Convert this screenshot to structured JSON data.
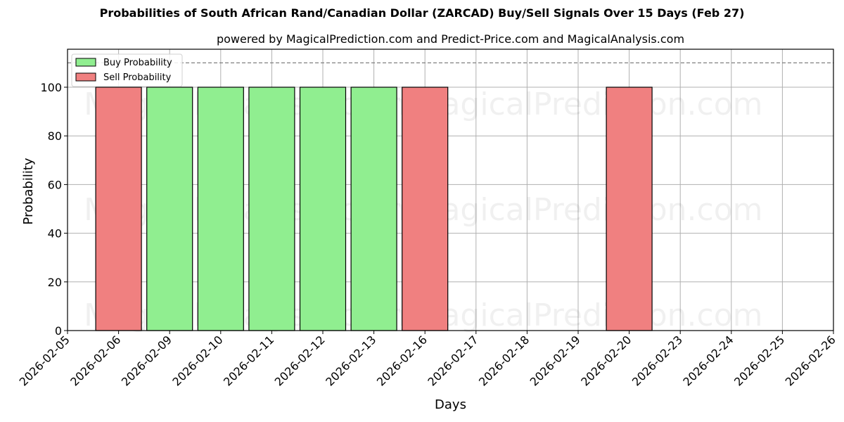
{
  "title": "Probabilities of South African Rand/Canadian Dollar (ZARCAD) Buy/Sell Signals Over 15 Days (Feb 27)",
  "subtitle": "powered by MagicalPrediction.com and Predict-Price.com and MagicalAnalysis.com",
  "watermarks": [
    "MagicalAnalysis.com",
    "MagicalPrediction.com"
  ],
  "colors": {
    "buy": "#90ee90",
    "sell": "#f08080",
    "edge": "#000000",
    "grid": "#b0b0b0",
    "threshold": "#808080"
  },
  "chart_data": {
    "type": "bar",
    "title": "Probabilities of South African Rand/Canadian Dollar (ZARCAD) Buy/Sell Signals Over 15 Days (Feb 27)",
    "subtitle": "powered by MagicalPrediction.com and Predict-Price.com and MagicalAnalysis.com",
    "xlabel": "Days",
    "ylabel": "Probability",
    "ylim": [
      0,
      115
    ],
    "yticks": [
      0,
      20,
      40,
      60,
      80,
      100
    ],
    "threshold_line": 110,
    "grid": true,
    "legend_position": "upper left",
    "categories": [
      "2026-02-05",
      "2026-02-06",
      "2026-02-09",
      "2026-02-10",
      "2026-02-11",
      "2026-02-12",
      "2026-02-13",
      "2026-02-16",
      "2026-02-17",
      "2026-02-18",
      "2026-02-19",
      "2026-02-20",
      "2026-02-23",
      "2026-02-24",
      "2026-02-25",
      "2026-02-26"
    ],
    "series": [
      {
        "name": "Buy Probability",
        "color": "#90ee90",
        "values": [
          0,
          0,
          100,
          100,
          100,
          100,
          100,
          0,
          0,
          0,
          0,
          0,
          0,
          0,
          0,
          0
        ]
      },
      {
        "name": "Sell Probability",
        "color": "#f08080",
        "values": [
          0,
          100,
          0,
          0,
          0,
          0,
          0,
          100,
          0,
          0,
          0,
          100,
          0,
          0,
          0,
          0
        ]
      }
    ]
  }
}
